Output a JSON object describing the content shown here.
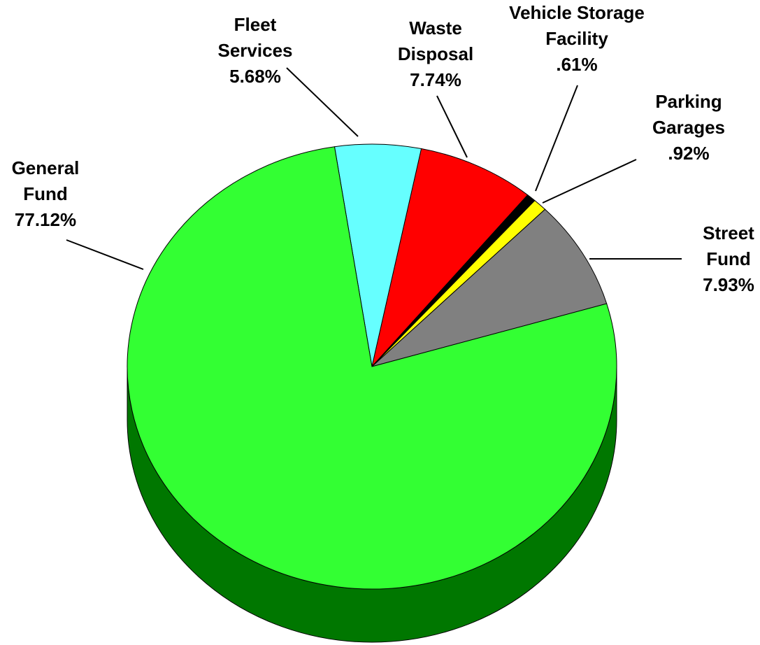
{
  "chart_data": {
    "type": "pie",
    "categories": [
      "Fleet Services",
      "Waste Disposal",
      "Vehicle Storage Facility",
      "Parking Garages",
      "Street Fund",
      "General Fund"
    ],
    "values": [
      5.68,
      7.74,
      0.61,
      0.92,
      7.93,
      77.12
    ],
    "value_labels": [
      "5.68%",
      "7.74%",
      ".61%",
      ".92%",
      "7.93%",
      "77.12%"
    ],
    "colors": [
      "#66ffff",
      "#ff0000",
      "#000000",
      "#ffff00",
      "#808080",
      "#33ff33"
    ]
  }
}
